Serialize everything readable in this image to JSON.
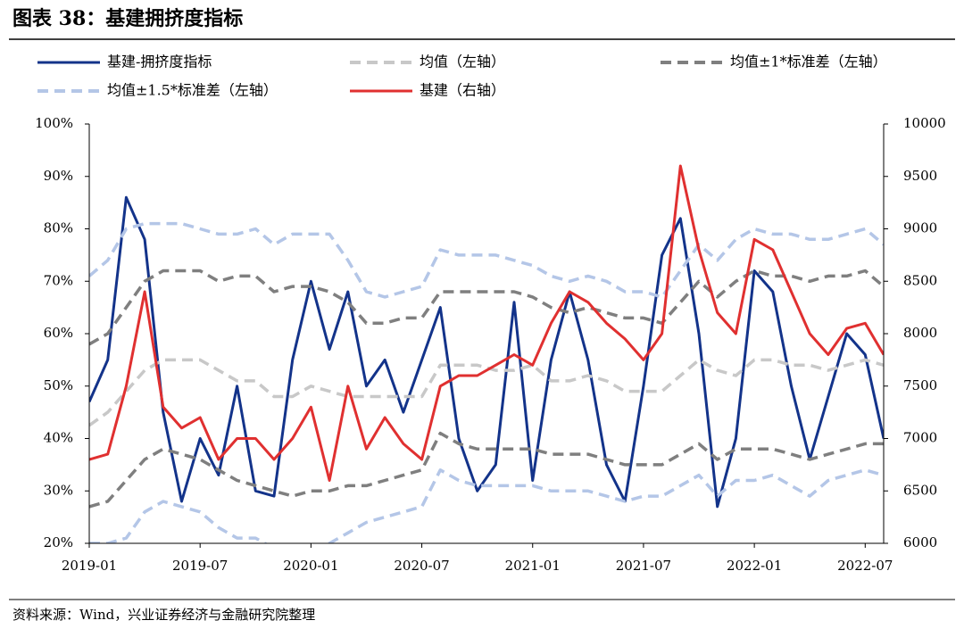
{
  "chart_data": {
    "type": "line",
    "title": "图表 38：基建拥挤度指标",
    "source": "资料来源：Wind，兴业证券经济与金融研究院整理",
    "x": [
      0,
      1,
      2,
      3,
      4,
      5,
      6,
      7,
      8,
      9,
      10,
      11,
      12,
      13,
      14,
      15,
      16,
      17,
      18,
      19,
      20,
      21,
      22,
      23,
      24,
      25,
      26,
      27,
      28,
      29,
      30,
      31,
      32,
      33,
      34,
      35,
      36,
      37,
      38,
      39,
      40,
      41,
      42,
      43
    ],
    "xlim": [
      0,
      43
    ],
    "xticks": [
      {
        "value": 0,
        "label": "2019-01"
      },
      {
        "value": 6,
        "label": "2019-07"
      },
      {
        "value": 12,
        "label": "2020-01"
      },
      {
        "value": 18,
        "label": "2020-07"
      },
      {
        "value": 24,
        "label": "2021-01"
      },
      {
        "value": 30,
        "label": "2021-07"
      },
      {
        "value": 36,
        "label": "2022-01"
      },
      {
        "value": 42,
        "label": "2022-07"
      }
    ],
    "ylim": [
      20,
      100
    ],
    "yticks": [
      {
        "value": 20,
        "label": "20%"
      },
      {
        "value": 30,
        "label": "30%"
      },
      {
        "value": 40,
        "label": "40%"
      },
      {
        "value": 50,
        "label": "50%"
      },
      {
        "value": 60,
        "label": "60%"
      },
      {
        "value": 70,
        "label": "70%"
      },
      {
        "value": 80,
        "label": "80%"
      },
      {
        "value": 90,
        "label": "90%"
      },
      {
        "value": 100,
        "label": "100%"
      }
    ],
    "y2lim": [
      6000,
      10000
    ],
    "y2ticks": [
      6000,
      6500,
      7000,
      7500,
      8000,
      8500,
      9000,
      9500,
      10000
    ],
    "series": [
      {
        "name": "基建-拥挤度指标",
        "color": "#13338a",
        "dash": false,
        "values": [
          47,
          55,
          86,
          78,
          45,
          28,
          40,
          33,
          50,
          30,
          29,
          55,
          70,
          57,
          68,
          50,
          55,
          45,
          55,
          65,
          40,
          30,
          35,
          66,
          32,
          55,
          68,
          55,
          35,
          28,
          50,
          75,
          82,
          60,
          27,
          40,
          72,
          68,
          50,
          36,
          48,
          60,
          56,
          40
        ]
      },
      {
        "name": "均值（左轴）",
        "color": "#c8c8c8",
        "dash": true,
        "values": [
          42.5,
          45,
          49,
          53,
          55,
          55,
          55,
          53,
          51,
          51,
          48,
          48,
          50,
          49,
          48,
          48,
          48,
          48,
          48,
          54,
          54,
          54,
          53,
          53,
          54,
          51,
          51,
          52,
          51,
          49,
          49,
          49,
          52,
          55,
          53,
          52,
          55,
          55,
          54,
          54,
          53,
          54,
          55,
          54
        ]
      },
      {
        "name": "均值±1*标准差（左轴）",
        "color": "#7f7f7f",
        "dash": true,
        "values": [
          58,
          60,
          65,
          70,
          72,
          72,
          72,
          70,
          71,
          71,
          68,
          69,
          69,
          68,
          66,
          62,
          62,
          63,
          63,
          68,
          68,
          68,
          68,
          68,
          67,
          65,
          64,
          65,
          64,
          63,
          63,
          62,
          66,
          70,
          67,
          70,
          72,
          71,
          71,
          70,
          71,
          71,
          72,
          69
        ]
      },
      {
        "name": null,
        "color": "#7f7f7f",
        "dash": true,
        "values": [
          27,
          28,
          32,
          36,
          38,
          37,
          36,
          34,
          32,
          31,
          30,
          29,
          30,
          30,
          31,
          31,
          32,
          33,
          34,
          41,
          39,
          38,
          38,
          38,
          38,
          37,
          37,
          37,
          36,
          35,
          35,
          35,
          37,
          39,
          36,
          38,
          38,
          38,
          37,
          36,
          37,
          38,
          39,
          39
        ]
      },
      {
        "name": "均值±1.5*标准差（左轴）",
        "color": "#b4c6e7",
        "dash": true,
        "values": [
          71,
          74,
          80,
          81,
          81,
          81,
          80,
          79,
          79,
          80,
          77,
          79,
          79,
          79,
          74,
          68,
          67,
          68,
          69,
          76,
          75,
          75,
          75,
          74,
          73,
          71,
          70,
          71,
          70,
          68,
          68,
          67,
          72,
          77,
          74,
          78,
          80,
          79,
          79,
          78,
          78,
          79,
          80,
          77
        ]
      },
      {
        "name": null,
        "color": "#b4c6e7",
        "dash": true,
        "values": [
          20,
          20,
          21,
          26,
          28,
          27,
          26,
          23,
          21,
          21,
          19,
          18,
          19,
          20,
          22,
          24,
          25,
          26,
          27,
          34,
          32,
          31,
          31,
          31,
          31,
          30,
          30,
          30,
          29,
          28,
          29,
          29,
          31,
          33,
          29,
          32,
          32,
          33,
          31,
          29,
          32,
          33,
          34,
          33
        ]
      },
      {
        "name": "基建（右轴）",
        "color": "#e03030",
        "dash": false,
        "axis": "y2",
        "values": [
          6800,
          6850,
          7500,
          8400,
          7300,
          7100,
          7200,
          6800,
          7000,
          7000,
          6800,
          7000,
          7300,
          6600,
          7500,
          6900,
          7200,
          6950,
          6800,
          7500,
          7600,
          7600,
          7700,
          7800,
          7700,
          8100,
          8400,
          8300,
          8100,
          7950,
          7750,
          8000,
          9600,
          8800,
          8200,
          8000,
          8900,
          8800,
          8400,
          8000,
          7800,
          8050,
          8100,
          7800
        ]
      }
    ]
  }
}
